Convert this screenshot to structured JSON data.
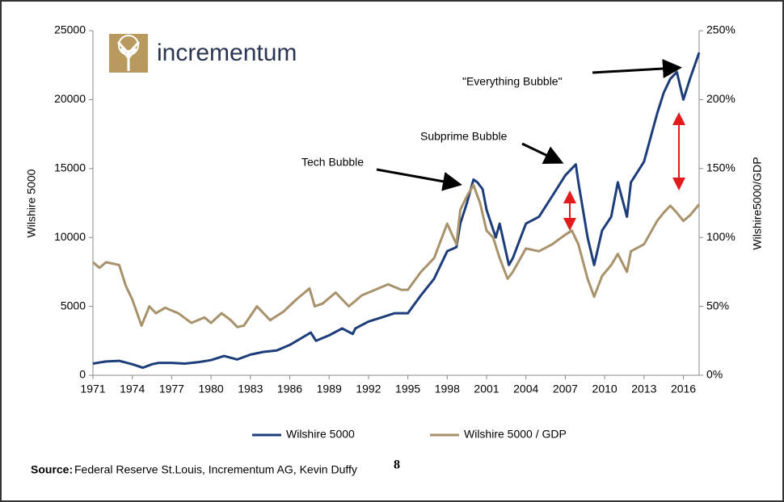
{
  "chart_data": {
    "type": "line",
    "logo": "incrementum",
    "ylabel": "Wilshire 5000",
    "y2label": "Wilshire5000/GDP",
    "xlim": [
      1971,
      2017.2
    ],
    "xticks": [
      1971,
      1974,
      1977,
      1980,
      1983,
      1986,
      1989,
      1992,
      1995,
      1998,
      2001,
      2004,
      2007,
      2010,
      2013,
      2016
    ],
    "ylim": [
      0,
      25000
    ],
    "yticks": [
      0,
      5000,
      10000,
      15000,
      20000,
      25000
    ],
    "y2lim": [
      0,
      250
    ],
    "y2ticks": [
      {
        "value": 0,
        "label": "0%"
      },
      {
        "value": 50,
        "label": "50%"
      },
      {
        "value": 100,
        "label": "100%"
      },
      {
        "value": 150,
        "label": "150%"
      },
      {
        "value": 200,
        "label": "200%"
      },
      {
        "value": 250,
        "label": "250%"
      }
    ],
    "legend": "bottom",
    "annotations": [
      "Tech Bubble",
      "Subprime Bubble",
      "\"Everything Bubble\""
    ],
    "source_label": "Source:",
    "source": "Federal Reserve St.Louis, Incrementum AG, Kevin Duffy",
    "footnote": "8",
    "series": [
      {
        "name": "Wilshire 5000",
        "color": "#1d3d7a",
        "x": [
          1971,
          1972,
          1973,
          1974,
          1974.8,
          1975.5,
          1976,
          1977,
          1978,
          1979,
          1980,
          1981,
          1982,
          1983,
          1984,
          1985,
          1986,
          1987.6,
          1988,
          1989,
          1990,
          1990.8,
          1991,
          1992,
          1993,
          1994,
          1995,
          1996,
          1997,
          1998,
          1998.7,
          1999,
          1999.5,
          2000,
          2000.3,
          2000.7,
          2001,
          2001.7,
          2002,
          2002.7,
          2003,
          2004,
          2005,
          2006,
          2007,
          2007.8,
          2008,
          2008.7,
          2009.2,
          2009.8,
          2010.5,
          2011,
          2011.7,
          2012,
          2013,
          2014,
          2014.5,
          2015,
          2015.5,
          2016,
          2016.5,
          2017.2
        ],
        "values": [
          850,
          1000,
          1050,
          800,
          550,
          800,
          900,
          900,
          850,
          950,
          1100,
          1400,
          1150,
          1500,
          1700,
          1800,
          2200,
          3100,
          2500,
          2900,
          3400,
          3000,
          3400,
          3900,
          4200,
          4500,
          4500,
          5800,
          7000,
          9000,
          9300,
          11000,
          12500,
          14200,
          14000,
          13500,
          12000,
          10000,
          11000,
          8000,
          8500,
          11000,
          11500,
          13000,
          14500,
          15300,
          14000,
          10000,
          8000,
          10500,
          11500,
          14000,
          11500,
          14000,
          15500,
          19000,
          20500,
          21500,
          22000,
          20000,
          21500,
          23400
        ]
      },
      {
        "name": "Wilshire 5000 / GDP",
        "color": "#a8926b",
        "axis": "y2",
        "x": [
          1971,
          1971.5,
          1972,
          1973,
          1973.5,
          1974,
          1974.7,
          1975.3,
          1975.8,
          1976.5,
          1977.5,
          1978.5,
          1979.5,
          1980,
          1980.8,
          1981.5,
          1982,
          1982.5,
          1983.5,
          1984.5,
          1985.5,
          1986.5,
          1987.5,
          1987.9,
          1988.5,
          1989.5,
          1990.5,
          1991.5,
          1992.5,
          1993.5,
          1994.5,
          1995,
          1996,
          1997,
          1998,
          1998.7,
          1999,
          1999.5,
          2000,
          2000.5,
          2001,
          2001.5,
          2002,
          2002.6,
          2003,
          2004,
          2005,
          2006,
          2007,
          2007.5,
          2008,
          2008.7,
          2009.2,
          2009.8,
          2010.5,
          2011,
          2011.7,
          2012,
          2013,
          2014,
          2014.5,
          2015,
          2015.5,
          2016,
          2016.5,
          2017.2
        ],
        "values": [
          82,
          78,
          82,
          80,
          65,
          55,
          36,
          50,
          45,
          49,
          45,
          38,
          42,
          38,
          45,
          40,
          35,
          36,
          50,
          40,
          46,
          55,
          63,
          50,
          52,
          60,
          50,
          58,
          62,
          66,
          62,
          62,
          75,
          85,
          110,
          95,
          120,
          130,
          138,
          125,
          105,
          100,
          85,
          70,
          75,
          92,
          90,
          95,
          102,
          105,
          95,
          70,
          57,
          72,
          80,
          88,
          75,
          90,
          95,
          112,
          118,
          123,
          118,
          112,
          116,
          124
        ]
      }
    ]
  }
}
